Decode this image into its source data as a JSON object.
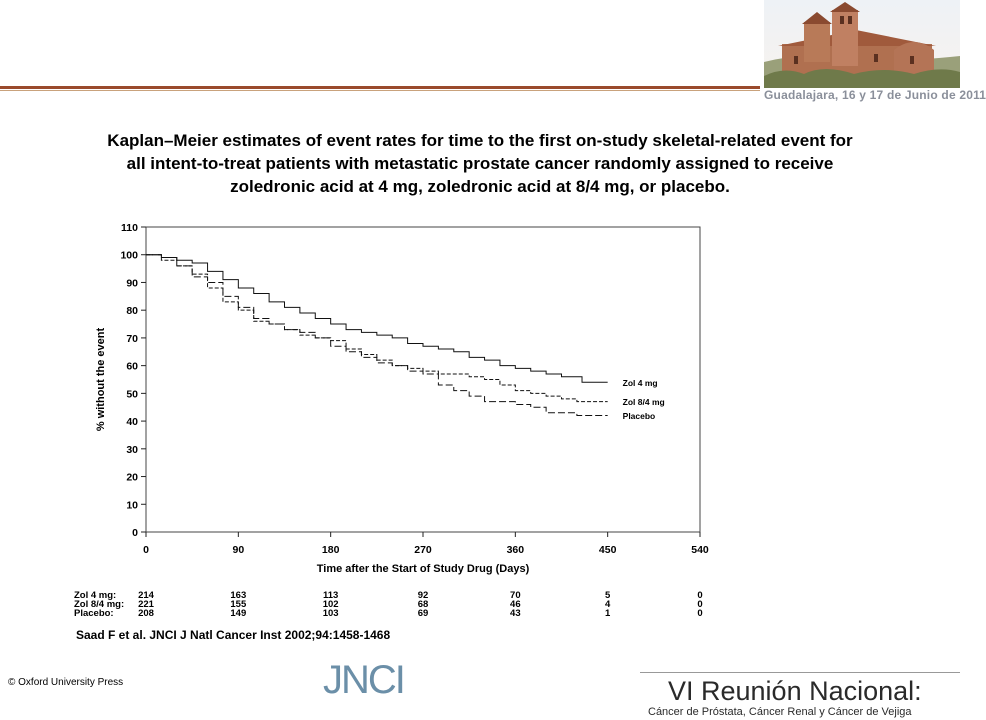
{
  "header": {
    "date_text": "Guadalajara, 16 y 17 de Junio de 2011"
  },
  "slide": {
    "title_line1": "Kaplan–Meier estimates of event rates for time to the first on-study skeletal-related event for",
    "title_line2": "all intent-to-treat patients with metastatic prostate cancer randomly assigned to receive",
    "title_line3": "zoledronic acid at 4 mg, zoledronic acid at 8/4 mg, or placebo."
  },
  "chart_data": {
    "type": "line",
    "title": "",
    "xlabel": "Time after the Start of Study Drug (Days)",
    "ylabel": "% without the event",
    "xlim": [
      0,
      540
    ],
    "ylim": [
      0,
      110
    ],
    "xticks": [
      0,
      90,
      180,
      270,
      360,
      450,
      540
    ],
    "yticks": [
      0,
      10,
      20,
      30,
      40,
      50,
      60,
      70,
      80,
      90,
      100,
      110
    ],
    "grid": false,
    "legend": "inline-right",
    "series": [
      {
        "name": "Zol 4 mg",
        "style": "solid",
        "x": [
          0,
          15,
          30,
          45,
          60,
          75,
          90,
          105,
          120,
          135,
          150,
          165,
          180,
          195,
          210,
          225,
          240,
          255,
          270,
          285,
          300,
          315,
          330,
          345,
          360,
          375,
          390,
          405,
          420,
          425,
          450
        ],
        "y": [
          100,
          99,
          98,
          97,
          94,
          91,
          88,
          86,
          83,
          81,
          79,
          77,
          75,
          73,
          72,
          71,
          70,
          68,
          67,
          66,
          65,
          63,
          62,
          60,
          59,
          58,
          57,
          56,
          56,
          54,
          54
        ]
      },
      {
        "name": "Zol 8/4 mg",
        "style": "dash",
        "x": [
          0,
          15,
          30,
          45,
          60,
          75,
          90,
          105,
          120,
          135,
          150,
          165,
          180,
          195,
          210,
          225,
          240,
          255,
          270,
          285,
          300,
          315,
          330,
          345,
          360,
          375,
          390,
          405,
          420,
          450
        ],
        "y": [
          100,
          98,
          96,
          93,
          88,
          83,
          80,
          76,
          75,
          73,
          71,
          70,
          69,
          66,
          64,
          62,
          60,
          59,
          58,
          57,
          57,
          56,
          55,
          53,
          51,
          50,
          49,
          48,
          47,
          47
        ]
      },
      {
        "name": "Placebo",
        "style": "longdash",
        "x": [
          0,
          15,
          30,
          45,
          60,
          75,
          90,
          105,
          120,
          135,
          150,
          165,
          180,
          195,
          210,
          225,
          240,
          255,
          270,
          285,
          300,
          315,
          330,
          345,
          360,
          375,
          390,
          405,
          420,
          450
        ],
        "y": [
          100,
          99,
          96,
          92,
          90,
          85,
          81,
          77,
          75,
          73,
          72,
          70,
          67,
          65,
          63,
          61,
          60,
          58,
          57,
          53,
          51,
          49,
          47,
          47,
          46,
          45,
          43,
          43,
          42,
          42
        ]
      }
    ],
    "risk_table": {
      "x": [
        0,
        90,
        180,
        270,
        360,
        450,
        540
      ],
      "rows": [
        {
          "label": "Zol 4 mg:",
          "values": [
            "214",
            "163",
            "113",
            "92",
            "70",
            "5",
            "0"
          ]
        },
        {
          "label": "Zol 8/4 mg:",
          "values": [
            "221",
            "155",
            "102",
            "68",
            "46",
            "4",
            "0"
          ]
        },
        {
          "label": "Placebo:",
          "values": [
            "208",
            "149",
            "103",
            "69",
            "43",
            "1",
            "0"
          ]
        }
      ]
    }
  },
  "citation": "Saad F et al. JNCI J Natl Cancer Inst 2002;94:1458-1468",
  "copyright": "© Oxford University Press",
  "footer": {
    "logo_text": "JNCI",
    "event_title": "VI Reunión Nacional:",
    "event_subtitle": "Cáncer de Próstata, Cáncer Renal y Cáncer de Vejiga"
  }
}
